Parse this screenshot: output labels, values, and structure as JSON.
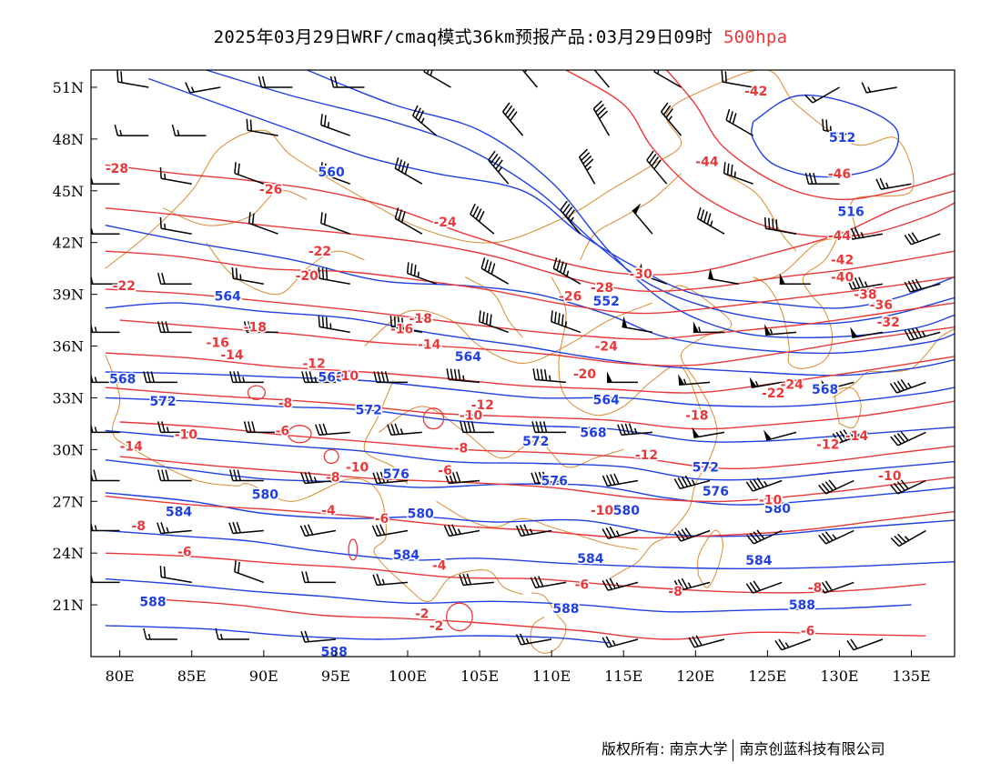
{
  "title": {
    "main": "2025年03月29日WRF/cmaq模式36km预报产品:03月29日09时",
    "level": "500hpa",
    "level_color": "#e8383a"
  },
  "copyright": {
    "owner": "版权所有: 南京大学",
    "partner": "南京创蓝科技有限公司"
  },
  "colors": {
    "height_contours": "#2040e0",
    "temperature_contours": "#e8383a",
    "borders": "#d88c30",
    "wind_barbs": "#000000"
  },
  "map": {
    "lon_range": [
      78,
      138
    ],
    "lat_range": [
      18,
      52
    ],
    "lon_ticks": [
      "80E",
      "85E",
      "90E",
      "95E",
      "100E",
      "105E",
      "110E",
      "115E",
      "120E",
      "125E",
      "130E",
      "135E"
    ],
    "lat_ticks": [
      "51N",
      "48N",
      "45N",
      "42N",
      "39N",
      "36N",
      "33N",
      "30N",
      "27N",
      "24N",
      "21N"
    ],
    "height_labels": [
      {
        "text": "512",
        "lon": 130.2,
        "lat": 48.1
      },
      {
        "text": "516",
        "lon": 130.8,
        "lat": 43.8
      },
      {
        "text": "552",
        "lon": 113.8,
        "lat": 38.6
      },
      {
        "text": "560",
        "lon": 94.7,
        "lat": 46.1
      },
      {
        "text": "564",
        "lon": 87.5,
        "lat": 38.9
      },
      {
        "text": "564",
        "lon": 104.2,
        "lat": 35.4
      },
      {
        "text": "564",
        "lon": 113.8,
        "lat": 32.9
      },
      {
        "text": "568",
        "lon": 80.2,
        "lat": 34.1
      },
      {
        "text": "568",
        "lon": 94.7,
        "lat": 34.2
      },
      {
        "text": "568",
        "lon": 112.9,
        "lat": 31.0
      },
      {
        "text": "568",
        "lon": 129.0,
        "lat": 33.5
      },
      {
        "text": "572",
        "lon": 83.0,
        "lat": 32.8
      },
      {
        "text": "572",
        "lon": 97.3,
        "lat": 32.3
      },
      {
        "text": "572",
        "lon": 108.9,
        "lat": 30.5
      },
      {
        "text": "572",
        "lon": 120.7,
        "lat": 29.0
      },
      {
        "text": "576",
        "lon": 99.2,
        "lat": 28.6
      },
      {
        "text": "576",
        "lon": 110.2,
        "lat": 28.2
      },
      {
        "text": "576",
        "lon": 121.4,
        "lat": 27.6
      },
      {
        "text": "580",
        "lon": 90.1,
        "lat": 27.4
      },
      {
        "text": "580",
        "lon": 100.9,
        "lat": 26.3
      },
      {
        "text": "580",
        "lon": 115.2,
        "lat": 26.5
      },
      {
        "text": "580",
        "lon": 125.7,
        "lat": 26.6
      },
      {
        "text": "584",
        "lon": 84.1,
        "lat": 26.4
      },
      {
        "text": "584",
        "lon": 99.9,
        "lat": 23.9
      },
      {
        "text": "584",
        "lon": 112.7,
        "lat": 23.7
      },
      {
        "text": "584",
        "lon": 124.4,
        "lat": 23.6
      },
      {
        "text": "588",
        "lon": 82.3,
        "lat": 21.2
      },
      {
        "text": "588",
        "lon": 111.0,
        "lat": 20.8
      },
      {
        "text": "588",
        "lon": 127.4,
        "lat": 21.0
      },
      {
        "text": "588",
        "lon": 94.9,
        "lat": 18.3
      }
    ],
    "temperature_labels": [
      {
        "text": "-42",
        "lon": 124.2,
        "lat": 50.8
      },
      {
        "text": "-44",
        "lon": 120.8,
        "lat": 46.7
      },
      {
        "text": "-46",
        "lon": 130.0,
        "lat": 46.0
      },
      {
        "text": "-44",
        "lon": 130.0,
        "lat": 42.4
      },
      {
        "text": "-42",
        "lon": 130.2,
        "lat": 41.0
      },
      {
        "text": "-40",
        "lon": 130.2,
        "lat": 40.0
      },
      {
        "text": "-38",
        "lon": 131.8,
        "lat": 39.0
      },
      {
        "text": "-36",
        "lon": 132.9,
        "lat": 38.4
      },
      {
        "text": "-32",
        "lon": 133.4,
        "lat": 37.4
      },
      {
        "text": "-28",
        "lon": 79.8,
        "lat": 46.3
      },
      {
        "text": "-26",
        "lon": 90.5,
        "lat": 45.1
      },
      {
        "text": "-24",
        "lon": 102.6,
        "lat": 43.2
      },
      {
        "text": "-22",
        "lon": 93.9,
        "lat": 41.5
      },
      {
        "text": "-22",
        "lon": 80.3,
        "lat": 39.5
      },
      {
        "text": "-20",
        "lon": 93.0,
        "lat": 40.1
      },
      {
        "text": "-30",
        "lon": 116.2,
        "lat": 40.2
      },
      {
        "text": "-28",
        "lon": 113.5,
        "lat": 39.4
      },
      {
        "text": "-26",
        "lon": 111.3,
        "lat": 38.9
      },
      {
        "text": "-24",
        "lon": 113.8,
        "lat": 36.0
      },
      {
        "text": "-24",
        "lon": 126.7,
        "lat": 33.8
      },
      {
        "text": "-22",
        "lon": 125.4,
        "lat": 33.3
      },
      {
        "text": "-20",
        "lon": 112.3,
        "lat": 34.4
      },
      {
        "text": "-18",
        "lon": 89.4,
        "lat": 37.1
      },
      {
        "text": "-18",
        "lon": 100.9,
        "lat": 37.6
      },
      {
        "text": "-18",
        "lon": 120.1,
        "lat": 32.0
      },
      {
        "text": "-16",
        "lon": 86.8,
        "lat": 36.2
      },
      {
        "text": "-16",
        "lon": 99.6,
        "lat": 37.0
      },
      {
        "text": "-14",
        "lon": 87.8,
        "lat": 35.5
      },
      {
        "text": "-14",
        "lon": 101.5,
        "lat": 36.1
      },
      {
        "text": "-14",
        "lon": 131.2,
        "lat": 30.8
      },
      {
        "text": "-12",
        "lon": 93.5,
        "lat": 35.0
      },
      {
        "text": "-12",
        "lon": 105.2,
        "lat": 32.6
      },
      {
        "text": "-12",
        "lon": 116.6,
        "lat": 29.7
      },
      {
        "text": "-12",
        "lon": 129.2,
        "lat": 30.3
      },
      {
        "text": "-10",
        "lon": 95.8,
        "lat": 34.3
      },
      {
        "text": "-10",
        "lon": 104.4,
        "lat": 32.0
      },
      {
        "text": "-10",
        "lon": 84.6,
        "lat": 30.9
      },
      {
        "text": "-10",
        "lon": 96.5,
        "lat": 29.0
      },
      {
        "text": "-10",
        "lon": 113.5,
        "lat": 26.5
      },
      {
        "text": "-10",
        "lon": 133.5,
        "lat": 28.5
      },
      {
        "text": "-10",
        "lon": 125.2,
        "lat": 27.1
      },
      {
        "text": "-8",
        "lon": 91.5,
        "lat": 32.7
      },
      {
        "text": "-8",
        "lon": 94.8,
        "lat": 28.4
      },
      {
        "text": "-8",
        "lon": 103.7,
        "lat": 30.1
      },
      {
        "text": "-8",
        "lon": 81.3,
        "lat": 25.6
      },
      {
        "text": "-8",
        "lon": 118.6,
        "lat": 21.8
      },
      {
        "text": "-8",
        "lon": 128.3,
        "lat": 22.0
      },
      {
        "text": "-6",
        "lon": 91.3,
        "lat": 31.1
      },
      {
        "text": "-6",
        "lon": 102.6,
        "lat": 28.8
      },
      {
        "text": "-6",
        "lon": 98.2,
        "lat": 26.0
      },
      {
        "text": "-6",
        "lon": 84.5,
        "lat": 24.1
      },
      {
        "text": "-6",
        "lon": 112.1,
        "lat": 22.2
      },
      {
        "text": "-6",
        "lon": 127.8,
        "lat": 19.5
      },
      {
        "text": "-4",
        "lon": 94.5,
        "lat": 26.5
      },
      {
        "text": "-4",
        "lon": 102.2,
        "lat": 23.3
      },
      {
        "text": "-2",
        "lon": 101.0,
        "lat": 20.5
      },
      {
        "text": "-2",
        "lon": 102.0,
        "lat": 19.8
      },
      {
        "text": "-14",
        "lon": 80.8,
        "lat": 30.2
      }
    ],
    "wind_rows": [
      {
        "lat": 51.0,
        "lons": [
          82,
          87,
          92,
          97,
          103,
          109,
          114,
          119,
          124,
          130,
          134
        ],
        "speed": [
          20,
          15,
          20,
          20,
          30,
          35,
          30,
          20,
          20,
          15,
          15
        ],
        "dir": [
          280,
          260,
          270,
          270,
          300,
          320,
          320,
          300,
          280,
          240,
          260
        ]
      },
      {
        "lat": 48.2,
        "lons": [
          82,
          86,
          91,
          96,
          102,
          108,
          114,
          119,
          124,
          131
        ],
        "speed": [
          15,
          15,
          20,
          25,
          35,
          40,
          40,
          35,
          30,
          25
        ],
        "dir": [
          270,
          270,
          280,
          290,
          310,
          320,
          330,
          320,
          300,
          280
        ]
      },
      {
        "lat": 45.4,
        "lons": [
          80,
          85,
          90,
          96,
          101,
          107,
          113,
          118,
          124,
          130,
          135
        ],
        "speed": [
          15,
          15,
          20,
          25,
          40,
          45,
          45,
          40,
          35,
          30,
          25
        ],
        "dir": [
          270,
          280,
          290,
          290,
          300,
          320,
          330,
          320,
          290,
          270,
          260
        ]
      },
      {
        "lat": 42.5,
        "lons": [
          80,
          85,
          91,
          96,
          101,
          106,
          112,
          117,
          122,
          127,
          133,
          137
        ],
        "speed": [
          15,
          15,
          20,
          20,
          30,
          40,
          45,
          50,
          45,
          40,
          35,
          30
        ],
        "dir": [
          270,
          280,
          290,
          290,
          300,
          310,
          320,
          320,
          300,
          280,
          260,
          250
        ]
      },
      {
        "lat": 39.6,
        "lons": [
          80,
          85,
          90,
          96,
          102,
          107,
          112,
          118,
          123,
          128,
          133,
          137
        ],
        "speed": [
          20,
          20,
          25,
          30,
          35,
          40,
          45,
          50,
          50,
          50,
          45,
          40
        ],
        "dir": [
          270,
          270,
          280,
          280,
          290,
          300,
          300,
          290,
          280,
          270,
          260,
          255
        ]
      },
      {
        "lat": 36.8,
        "lons": [
          80,
          85,
          91,
          96,
          101,
          107,
          112,
          117,
          122,
          127,
          133,
          137
        ],
        "speed": [
          25,
          30,
          30,
          35,
          40,
          40,
          45,
          50,
          55,
          55,
          50,
          45
        ],
        "dir": [
          270,
          270,
          270,
          280,
          280,
          290,
          290,
          280,
          270,
          265,
          260,
          255
        ]
      },
      {
        "lat": 33.9,
        "lons": [
          80,
          84,
          90,
          95,
          100,
          105,
          111,
          116,
          121,
          126,
          131,
          136
        ],
        "speed": [
          25,
          30,
          35,
          35,
          40,
          45,
          45,
          50,
          55,
          55,
          50,
          45
        ],
        "dir": [
          270,
          270,
          270,
          270,
          270,
          275,
          275,
          270,
          265,
          260,
          255,
          250
        ]
      },
      {
        "lat": 31.0,
        "lons": [
          80,
          85,
          91,
          96,
          101,
          106,
          111,
          117,
          122,
          127,
          132,
          136
        ],
        "speed": [
          25,
          25,
          30,
          30,
          35,
          40,
          40,
          45,
          50,
          50,
          45,
          40
        ],
        "dir": [
          270,
          270,
          270,
          265,
          265,
          270,
          270,
          265,
          260,
          255,
          250,
          245
        ]
      },
      {
        "lat": 28.2,
        "lons": [
          80,
          85,
          90,
          95,
          100,
          105,
          111,
          116,
          121,
          126,
          131,
          136
        ],
        "speed": [
          30,
          30,
          30,
          35,
          35,
          40,
          40,
          40,
          45,
          45,
          40,
          40
        ],
        "dir": [
          270,
          270,
          270,
          265,
          265,
          265,
          265,
          260,
          255,
          250,
          245,
          245
        ]
      },
      {
        "lat": 25.3,
        "lons": [
          80,
          85,
          90,
          95,
          100,
          105,
          110,
          116,
          121,
          126,
          131,
          136
        ],
        "speed": [
          25,
          25,
          30,
          30,
          30,
          35,
          35,
          35,
          40,
          40,
          35,
          35
        ],
        "dir": [
          270,
          265,
          265,
          260,
          260,
          260,
          260,
          255,
          250,
          245,
          245,
          240
        ]
      },
      {
        "lat": 22.3,
        "lons": [
          80,
          85,
          90,
          95,
          100,
          106,
          111,
          116,
          121,
          126,
          131
        ],
        "speed": [
          20,
          20,
          20,
          20,
          25,
          30,
          30,
          35,
          35,
          30,
          30
        ],
        "dir": [
          270,
          280,
          290,
          270,
          265,
          265,
          260,
          255,
          255,
          250,
          250
        ]
      },
      {
        "lat": 19.0,
        "lons": [
          84,
          89,
          95,
          110,
          116,
          122,
          128,
          133
        ],
        "speed": [
          15,
          15,
          20,
          25,
          25,
          30,
          25,
          20
        ],
        "dir": [
          270,
          270,
          265,
          260,
          255,
          255,
          250,
          250
        ]
      }
    ]
  }
}
